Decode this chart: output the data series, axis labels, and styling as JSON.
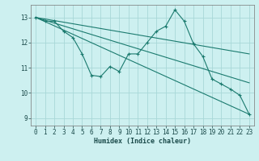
{
  "xlabel": "Humidex (Indice chaleur)",
  "bg_color": "#cdf0f0",
  "grid_color": "#a8d8d8",
  "line_color": "#1a7a6e",
  "xlim": [
    -0.5,
    23.5
  ],
  "ylim": [
    8.7,
    13.5
  ],
  "xticks": [
    0,
    1,
    2,
    3,
    4,
    5,
    6,
    7,
    8,
    9,
    10,
    11,
    12,
    13,
    14,
    15,
    16,
    17,
    18,
    19,
    20,
    21,
    22,
    23
  ],
  "yticks": [
    9,
    10,
    11,
    12,
    13
  ],
  "series1_x": [
    0,
    1,
    2,
    3,
    4,
    5,
    6,
    7,
    8,
    9,
    10,
    11,
    12,
    13,
    14,
    15,
    16,
    17,
    18,
    19,
    20,
    21,
    22,
    23
  ],
  "series1_y": [
    13.0,
    12.85,
    12.85,
    12.45,
    12.2,
    11.55,
    10.7,
    10.65,
    11.05,
    10.85,
    11.55,
    11.55,
    12.0,
    12.45,
    12.65,
    13.3,
    12.85,
    11.95,
    11.45,
    10.55,
    10.35,
    10.15,
    9.9,
    9.15
  ],
  "line2_x": [
    0,
    23
  ],
  "line2_y": [
    13.0,
    9.15
  ],
  "line3_x": [
    0,
    23
  ],
  "line3_y": [
    13.0,
    10.4
  ],
  "line4_x": [
    0,
    23
  ],
  "line4_y": [
    13.0,
    11.55
  ]
}
